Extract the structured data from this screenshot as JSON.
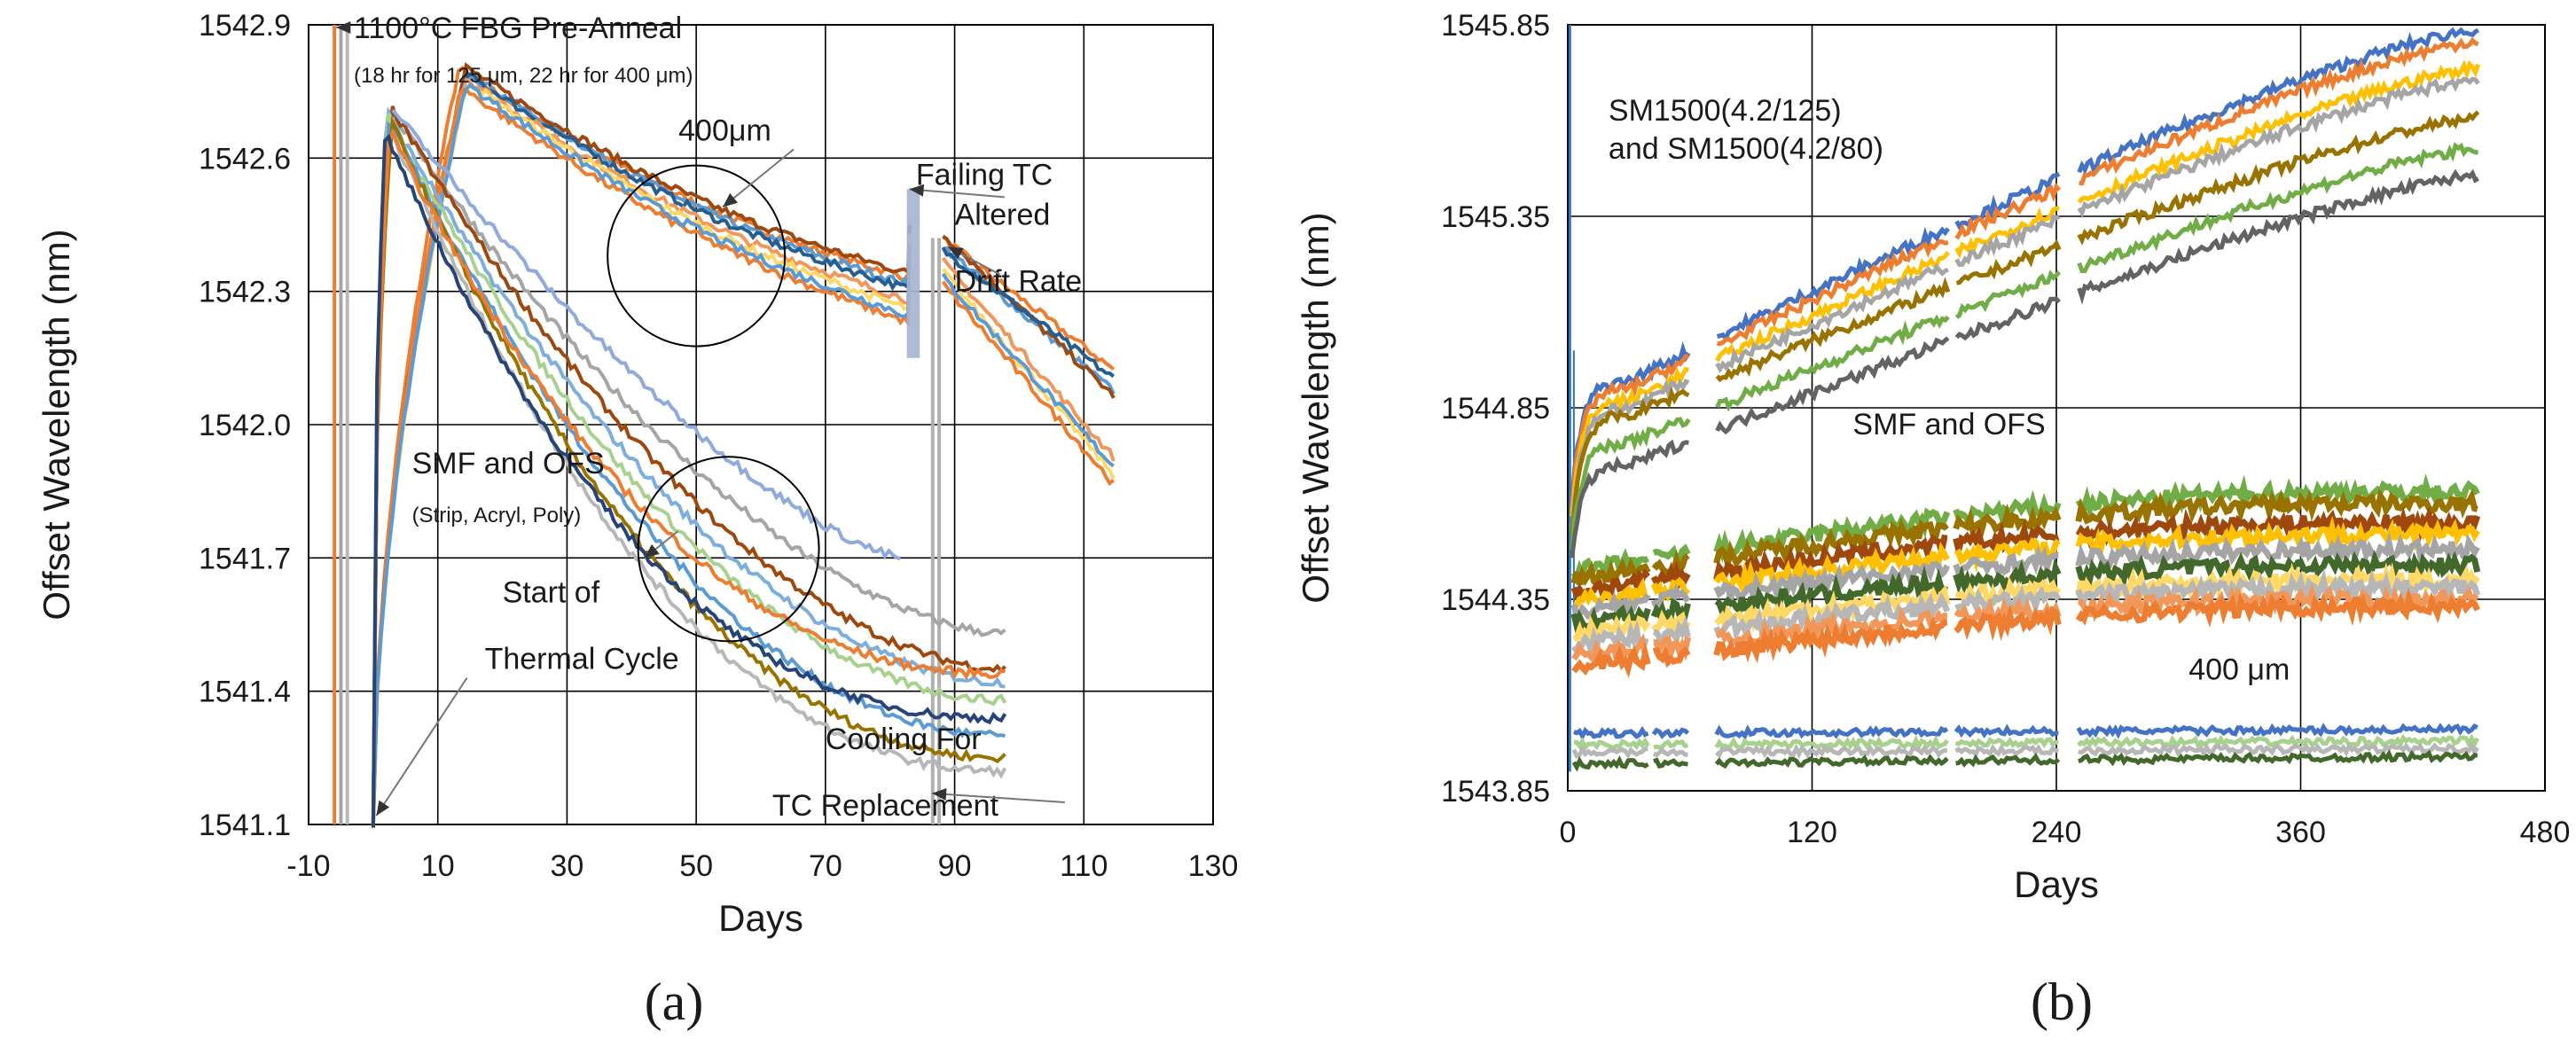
{
  "figure": {
    "panel_labels": [
      "(a)",
      "(b)"
    ]
  },
  "colors": {
    "palette": [
      "#4472c4",
      "#ed7d31",
      "#a5a5a5",
      "#ffc000",
      "#5b9bd5",
      "#70ad47",
      "#264478",
      "#9e480e",
      "#636363",
      "#997300",
      "#255e91",
      "#43682b",
      "#7cafdd",
      "#f1975a",
      "#b7b7b7",
      "#8faadc",
      "#ffd966",
      "#a9d18e"
    ],
    "grid": "#000000",
    "annotation_line": "#808080"
  },
  "chart_data": [
    {
      "panel": "(a)",
      "type": "line",
      "xlabel": "Days",
      "ylabel": "Offset Wavelength (nm)",
      "xlim": [
        -10,
        130
      ],
      "ylim": [
        1541.1,
        1542.9
      ],
      "x_ticks": [
        -10,
        10,
        30,
        50,
        70,
        90,
        110,
        130
      ],
      "y_ticks": [
        1541.1,
        1541.4,
        1541.7,
        1542.0,
        1542.3,
        1542.6,
        1542.9
      ],
      "y_tick_labels": [
        "1541.1",
        "1541.4",
        "1541.7",
        "1542.0",
        "1542.3",
        "1542.6",
        "1542.9"
      ],
      "annotations": [
        {
          "text": "1100°C FBG Pre-Anneal",
          "at": [
            -3,
            1542.87
          ]
        },
        {
          "text": "(18 hr for 125 μm, 22 hr for 400 μm)",
          "at": [
            -3,
            1542.77
          ]
        },
        {
          "text": "400μm",
          "at": [
            50,
            1542.64
          ]
        },
        {
          "text": "Failing TC",
          "at": [
            84,
            1542.54
          ]
        },
        {
          "text": "Altered",
          "at": [
            90,
            1542.45
          ]
        },
        {
          "text": "Drift Rate",
          "at": [
            90,
            1542.3
          ]
        },
        {
          "text": "SMF and OFS",
          "at": [
            6,
            1541.89
          ]
        },
        {
          "text": "(Strip, Acryl, Poly)",
          "at": [
            6,
            1541.78
          ]
        },
        {
          "text": "Start of",
          "at": [
            20,
            1541.6
          ]
        },
        {
          "text": "Thermal Cycle",
          "at": [
            20,
            1541.45
          ]
        },
        {
          "text": "Cooling For",
          "at": [
            70,
            1541.27
          ]
        },
        {
          "text": "TC Replacement",
          "at": [
            70,
            1541.12
          ]
        }
      ],
      "pre_anneal_spikes_x": [
        -6,
        -5,
        -4
      ],
      "series_groups": [
        {
          "name": "400um group (drop at day 83, recovery at day 88)",
          "start_x": 0,
          "peak": [
            14,
            1542.8
          ],
          "gap": [
            83,
            88
          ],
          "end_x": 115,
          "traces": [
            {
              "offset": 0.0,
              "end_y": 1542.12
            },
            {
              "offset": -0.03,
              "end_y": 1542.07
            },
            {
              "offset": 0.02,
              "end_y": 1542.06
            },
            {
              "offset": -0.05,
              "end_y": 1542.1
            },
            {
              "offset": -0.1,
              "end_y": 1541.92
            },
            {
              "offset": -0.14,
              "end_y": 1541.88
            },
            {
              "offset": -0.2,
              "end_y": 1541.86
            },
            {
              "offset": -0.17,
              "end_y": 1541.9
            }
          ]
        },
        {
          "name": "SMF and OFS (Strip, Acryl, Poly)",
          "start_x": 0,
          "peak": [
            2,
            1542.72
          ],
          "end_x": 98,
          "traces": [
            {
              "end_y": 1541.53
            },
            {
              "end_y": 1541.45
            },
            {
              "end_y": 1541.42
            },
            {
              "end_y": 1541.38
            },
            {
              "end_y": 1541.3
            },
            {
              "end_y": 1541.25
            },
            {
              "end_y": 1541.22
            },
            {
              "end_y": 1541.44
            },
            {
              "end_y": 1541.34
            }
          ]
        },
        {
          "name": "Early-ending trace",
          "start_x": 0,
          "end_x": 82,
          "traces": [
            {
              "end_y": 1541.7
            }
          ]
        }
      ]
    },
    {
      "panel": "(b)",
      "type": "line",
      "xlabel": "Days",
      "ylabel": "Offset Wavelength (nm)",
      "xlim": [
        0,
        480
      ],
      "ylim": [
        1543.85,
        1545.85
      ],
      "x_ticks": [
        0,
        120,
        240,
        360,
        480
      ],
      "y_ticks": [
        1543.85,
        1544.35,
        1544.85,
        1545.35,
        1545.85
      ],
      "y_tick_labels": [
        "1543.85",
        "1544.35",
        "1544.85",
        "1545.35",
        "1545.85"
      ],
      "gaps": [
        [
          60,
          72
        ],
        [
          187,
          190
        ],
        [
          242,
          250
        ]
      ],
      "end_x": 448,
      "annotations": [
        {
          "text": "SM1500(4.2/125)",
          "at": [
            20,
            1545.6
          ]
        },
        {
          "text": "and SM1500(4.2/80)",
          "at": [
            20,
            1545.5
          ]
        },
        {
          "text": "SMF and OFS",
          "at": [
            140,
            1544.78
          ]
        },
        {
          "text": "400 μm",
          "at": [
            305,
            1544.14
          ]
        }
      ],
      "series_groups": [
        {
          "name": "SM1500(4.2/125) and SM1500(4.2/80)",
          "traces": [
            {
              "y_day30": 1544.92,
              "y_end": 1545.83
            },
            {
              "y_day30": 1544.9,
              "y_end": 1545.8
            },
            {
              "y_day30": 1544.87,
              "y_end": 1545.73
            },
            {
              "y_day30": 1544.85,
              "y_end": 1545.7
            },
            {
              "y_day30": 1544.83,
              "y_end": 1545.6
            },
            {
              "y_day30": 1544.76,
              "y_end": 1545.52
            },
            {
              "y_day30": 1544.7,
              "y_end": 1545.45
            }
          ]
        },
        {
          "name": "SMF and OFS",
          "traces": [
            {
              "y_start": 1544.42,
              "y_end": 1544.63
            },
            {
              "y_start": 1544.4,
              "y_end": 1544.6
            },
            {
              "y_start": 1544.37,
              "y_end": 1544.55
            },
            {
              "y_start": 1544.34,
              "y_end": 1544.52
            },
            {
              "y_start": 1544.32,
              "y_end": 1544.48
            },
            {
              "y_start": 1544.29,
              "y_end": 1544.44
            },
            {
              "y_start": 1544.26,
              "y_end": 1544.4
            },
            {
              "y_start": 1544.23,
              "y_end": 1544.38
            },
            {
              "y_start": 1544.2,
              "y_end": 1544.35
            },
            {
              "y_start": 1544.17,
              "y_end": 1544.33
            }
          ]
        },
        {
          "name": "400 um",
          "traces": [
            {
              "y_start": 1544.0,
              "y_end": 1544.01
            },
            {
              "y_start": 1543.97,
              "y_end": 1543.98
            },
            {
              "y_start": 1543.95,
              "y_end": 1543.96
            },
            {
              "y_start": 1543.92,
              "y_end": 1543.94
            }
          ]
        }
      ]
    }
  ]
}
